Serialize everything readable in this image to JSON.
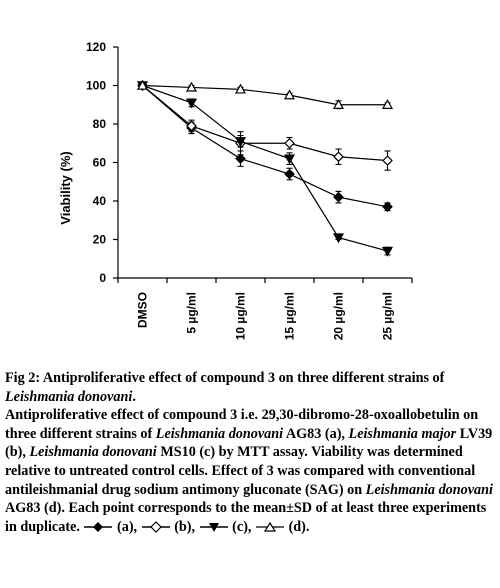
{
  "chart_data": {
    "type": "line",
    "categories": [
      "DMSO",
      "5 µg/ml",
      "10 µg/ml",
      "15 µg/ml",
      "20 µg/ml",
      "25 µg/ml"
    ],
    "ylabel": "Viability  (%)",
    "ylim": [
      0,
      120
    ],
    "yticks": [
      0,
      20,
      40,
      60,
      80,
      100,
      120
    ],
    "grid": false,
    "series": [
      {
        "name": "(a)",
        "marker": "diamond-filled",
        "values": [
          100,
          78,
          62,
          54,
          42,
          37
        ],
        "errors": [
          1,
          3,
          4,
          3,
          3,
          2
        ]
      },
      {
        "name": "(b)",
        "marker": "diamond-open",
        "values": [
          100,
          79,
          70,
          70,
          63,
          61
        ],
        "errors": [
          1,
          3,
          6,
          3,
          4,
          5
        ]
      },
      {
        "name": "(c)",
        "marker": "triangle-down-filled",
        "values": [
          100,
          91,
          71,
          62,
          21,
          14
        ],
        "errors": [
          1,
          2,
          3,
          3,
          1,
          2
        ]
      },
      {
        "name": "(d)",
        "marker": "triangle-up-open",
        "values": [
          100,
          99,
          98,
          95,
          90,
          90
        ],
        "errors": [
          1,
          1,
          1,
          1,
          2,
          1
        ]
      }
    ]
  },
  "caption": {
    "fig_label": "Fig 2: Antiproliferative effect of compound 3 on three different strains of ",
    "fig_label_italic": "Leishmania donovani",
    "fig_label_end": ".",
    "p1": "Antiproliferative effect of compound 3 i.e. 29,30-dibromo-28-oxoallobetulin on three different strains of ",
    "p1_i1": "Leishmania donovani",
    "p2": " AG83 (a), ",
    "p2_i2": "Leishmania major",
    "p3": " LV39 (b), ",
    "p3_i3": "Leishmania donovani",
    "p4": " MS10 (c) by MTT assay. Viability was determined relative to untreated control cells. Effect of 3 was compared with conventional antileishmanial drug sodium antimony gluconate (SAG) on ",
    "p4_i4": "Leishmania donovani",
    "p5": " AG83 (d). Each point corresponds to the mean±SD of at least three experiments in duplicate.",
    "leg_a": " (a),",
    "leg_b": " (b),",
    "leg_c": " (c),",
    "leg_d": " (d)."
  }
}
